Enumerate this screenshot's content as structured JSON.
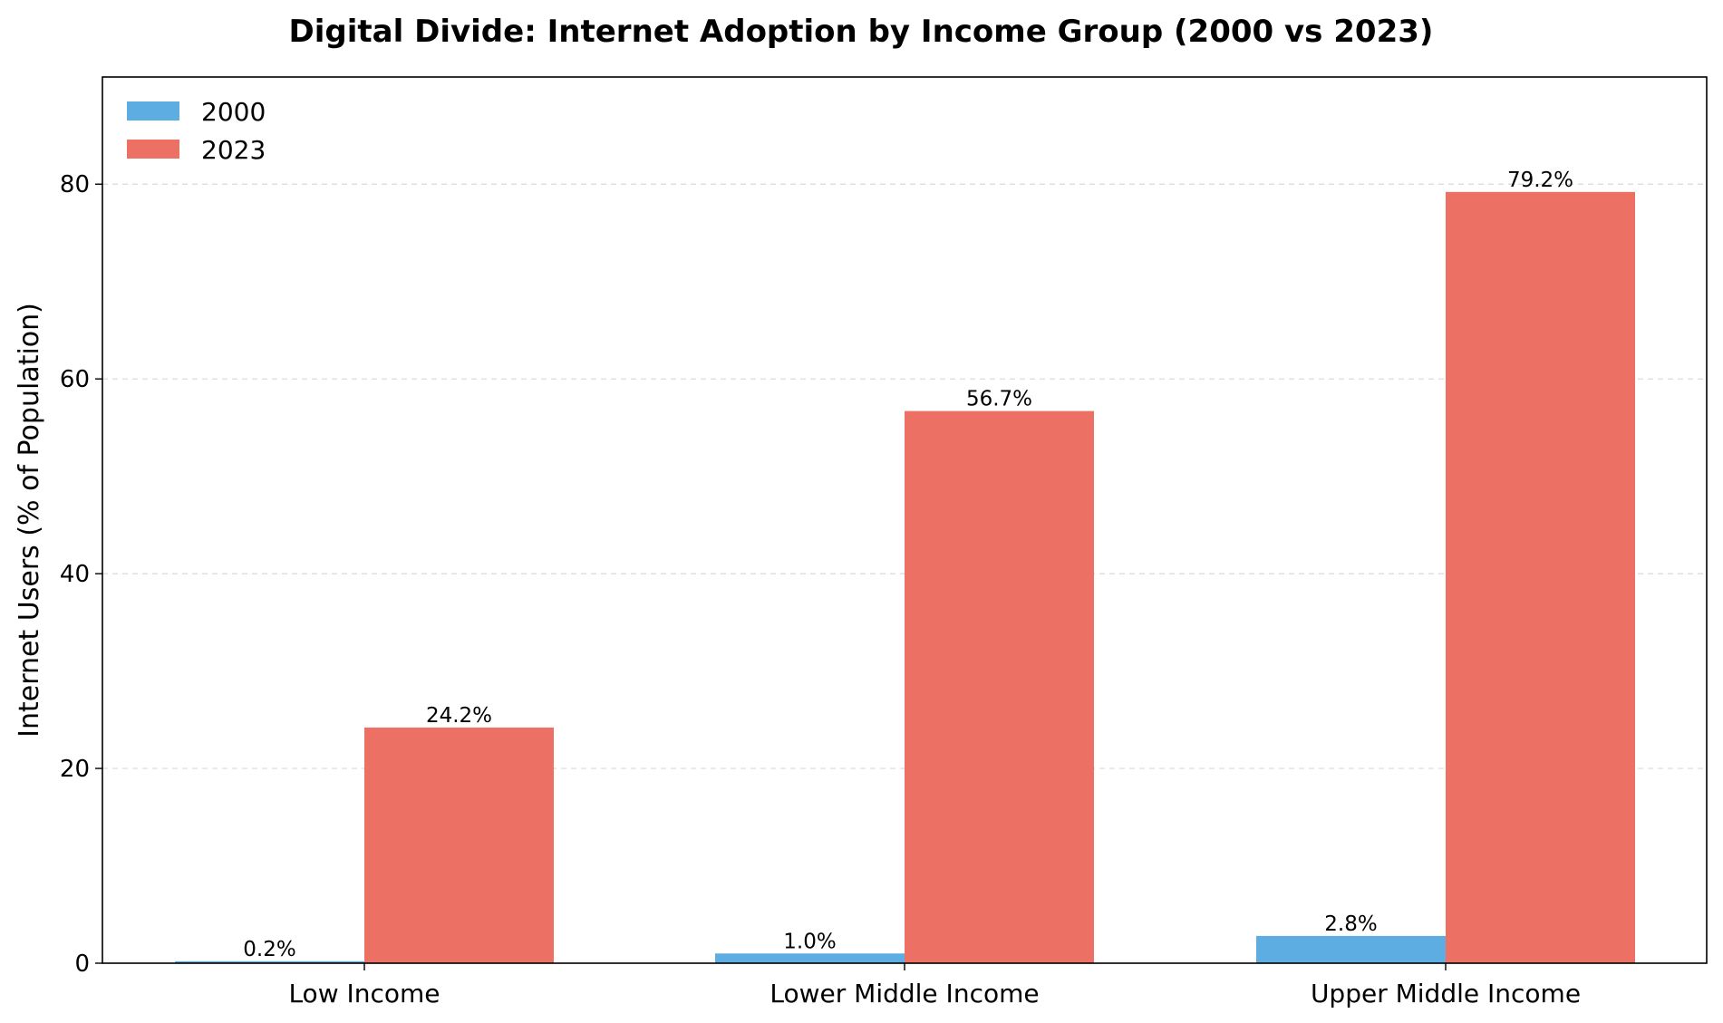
{
  "chart_data": {
    "type": "bar",
    "title": "Digital Divide: Internet Adoption by Income Group (2000 vs 2023)",
    "xlabel": "",
    "ylabel": "Internet Users (% of Population)",
    "categories": [
      "Low Income",
      "Lower Middle Income",
      "Upper Middle Income"
    ],
    "series": [
      {
        "name": "2000",
        "color": "#5DADE2",
        "values": [
          0.2,
          1.0,
          2.8
        ],
        "labels": [
          "0.2%",
          "1.0%",
          "2.8%"
        ]
      },
      {
        "name": "2023",
        "color": "#EC7063",
        "values": [
          24.2,
          56.7,
          79.2
        ],
        "labels": [
          "24.2%",
          "56.7%",
          "79.2%"
        ]
      }
    ],
    "ylim": [
      0,
      91
    ],
    "yticks": [
      0,
      20,
      40,
      60,
      80
    ],
    "grid": "horizontal-dashed",
    "legend_position": "top-left"
  }
}
